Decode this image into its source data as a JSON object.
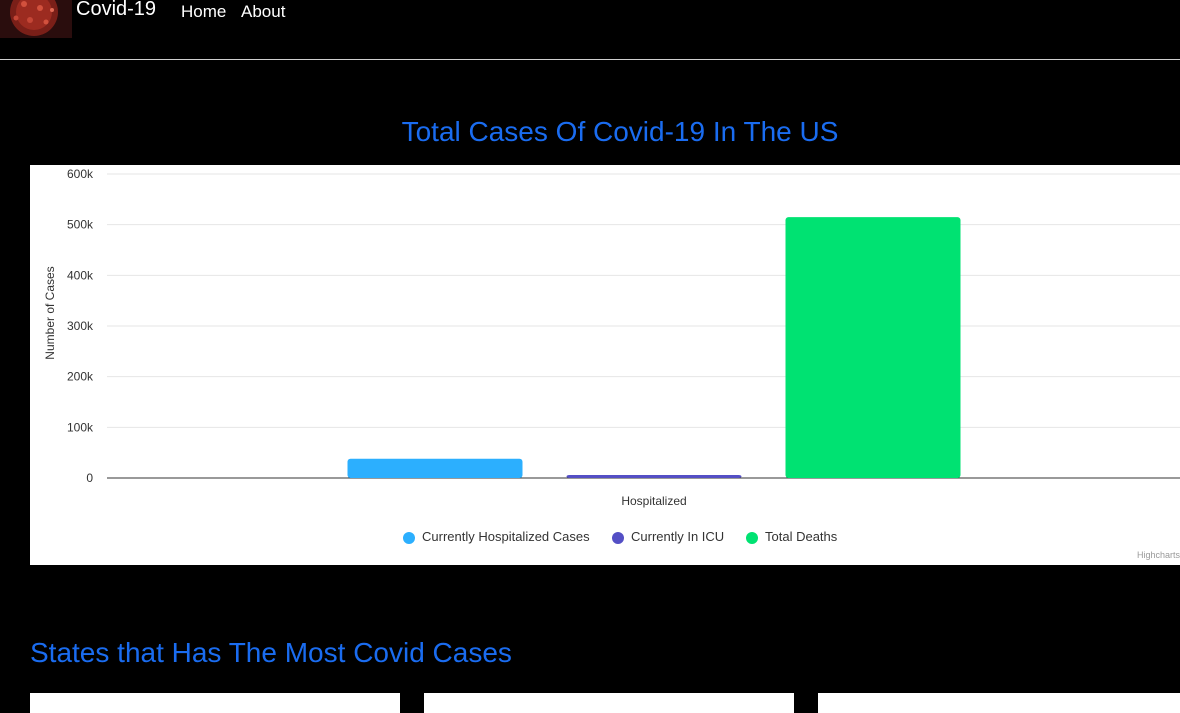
{
  "navbar": {
    "brand": "Covid-19",
    "links": [
      {
        "label": "Home"
      },
      {
        "label": "About"
      }
    ]
  },
  "chart_section": {
    "heading": "Total Cases Of Covid-19 In The US"
  },
  "chart_data": {
    "type": "bar",
    "categories": [
      "Hospitalized"
    ],
    "series": [
      {
        "name": "Currently Hospitalized Cases",
        "values": [
          38000
        ],
        "color": "#2caffe"
      },
      {
        "name": "Currently In ICU",
        "values": [
          6000
        ],
        "color": "#544fc5"
      },
      {
        "name": "Total Deaths",
        "values": [
          515000
        ],
        "color": "#00e272"
      }
    ],
    "title": "",
    "xlabel": "Hospitalized",
    "ylabel": "Number of Cases",
    "ylim": [
      0,
      600000
    ],
    "yticks": [
      0,
      100000,
      200000,
      300000,
      400000,
      500000,
      600000
    ],
    "ytick_labels": [
      "0",
      "100k",
      "200k",
      "300k",
      "400k",
      "500k",
      "600k"
    ],
    "grid": true,
    "legend": "bottom-center",
    "credits": "Highcharts"
  },
  "states_section": {
    "heading": "States that Has The Most Covid Cases"
  }
}
